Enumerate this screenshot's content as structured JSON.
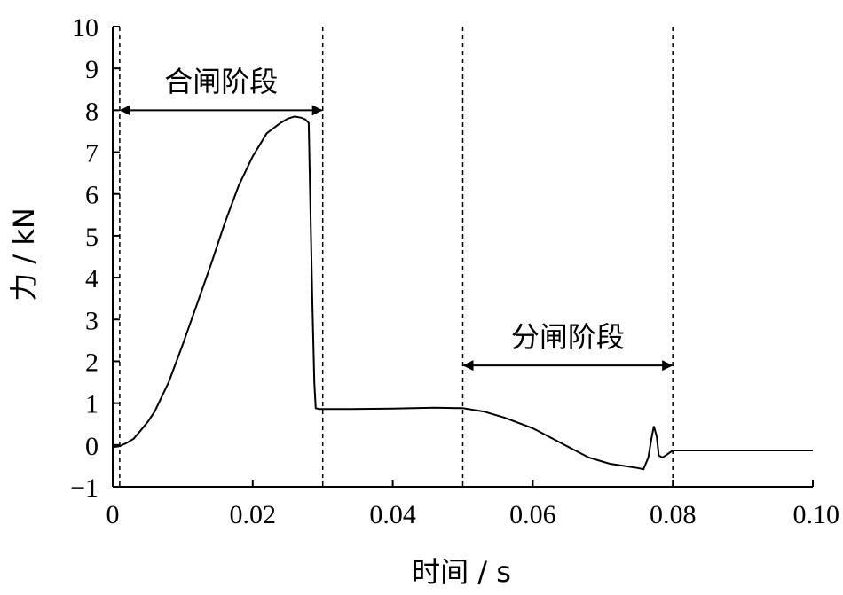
{
  "chart_data": {
    "type": "line",
    "xlabel": "时间 / s",
    "ylabel": "力 / kN",
    "xlim": [
      0,
      0.1
    ],
    "ylim": [
      -1,
      10
    ],
    "xticks": [
      0,
      0.02,
      0.04,
      0.06,
      0.08,
      0.1
    ],
    "xtick_labels": [
      "0",
      "0.02",
      "0.04",
      "0.06",
      "0.08",
      "0.10"
    ],
    "yticks": [
      -1,
      0,
      1,
      2,
      3,
      4,
      5,
      6,
      7,
      8,
      9,
      10
    ],
    "ytick_labels": [
      "−1",
      "0",
      "1",
      "2",
      "3",
      "4",
      "5",
      "6",
      "7",
      "8",
      "9",
      "10"
    ],
    "grid": false,
    "legend": "none",
    "colors": {
      "line": "#000000"
    },
    "series": [
      {
        "x": [
          0,
          0.001,
          0.002,
          0.003,
          0.004,
          0.005,
          0.006,
          0.008,
          0.01,
          0.012,
          0.014,
          0.016,
          0.018,
          0.02,
          0.022,
          0.024,
          0.025,
          0.026,
          0.027,
          0.0275,
          0.028,
          0.0282,
          0.0285,
          0.0288,
          0.029,
          0.0295,
          0.03,
          0.034,
          0.04,
          0.046,
          0.05,
          0.053,
          0.056,
          0.06,
          0.064,
          0.068,
          0.071,
          0.073,
          0.075,
          0.0758,
          0.0765,
          0.077,
          0.0773,
          0.0777,
          0.078,
          0.0785,
          0.079,
          0.08,
          0.085,
          0.09,
          0.095,
          0.1
        ],
        "y": [
          -0.05,
          -0.03,
          0.05,
          0.15,
          0.35,
          0.55,
          0.8,
          1.5,
          2.4,
          3.35,
          4.3,
          5.3,
          6.2,
          6.9,
          7.45,
          7.7,
          7.8,
          7.85,
          7.82,
          7.78,
          7.7,
          6.0,
          3.5,
          1.5,
          0.88,
          0.86,
          0.86,
          0.86,
          0.87,
          0.89,
          0.88,
          0.8,
          0.65,
          0.4,
          0.05,
          -0.3,
          -0.45,
          -0.5,
          -0.55,
          -0.58,
          -0.3,
          0.2,
          0.45,
          0.2,
          -0.25,
          -0.3,
          -0.25,
          -0.13,
          -0.13,
          -0.13,
          -0.13,
          -0.13
        ]
      }
    ],
    "phase_lines_x": [
      0.001,
      0.03,
      0.05,
      0.08
    ],
    "annotations": [
      {
        "text": "合闸阶段",
        "x_start": 0.001,
        "x_end": 0.03,
        "y": 8.0,
        "label_y": 8.45
      },
      {
        "text": "分闸阶段",
        "x_start": 0.05,
        "x_end": 0.08,
        "y": 1.9,
        "label_y": 2.35
      }
    ]
  }
}
